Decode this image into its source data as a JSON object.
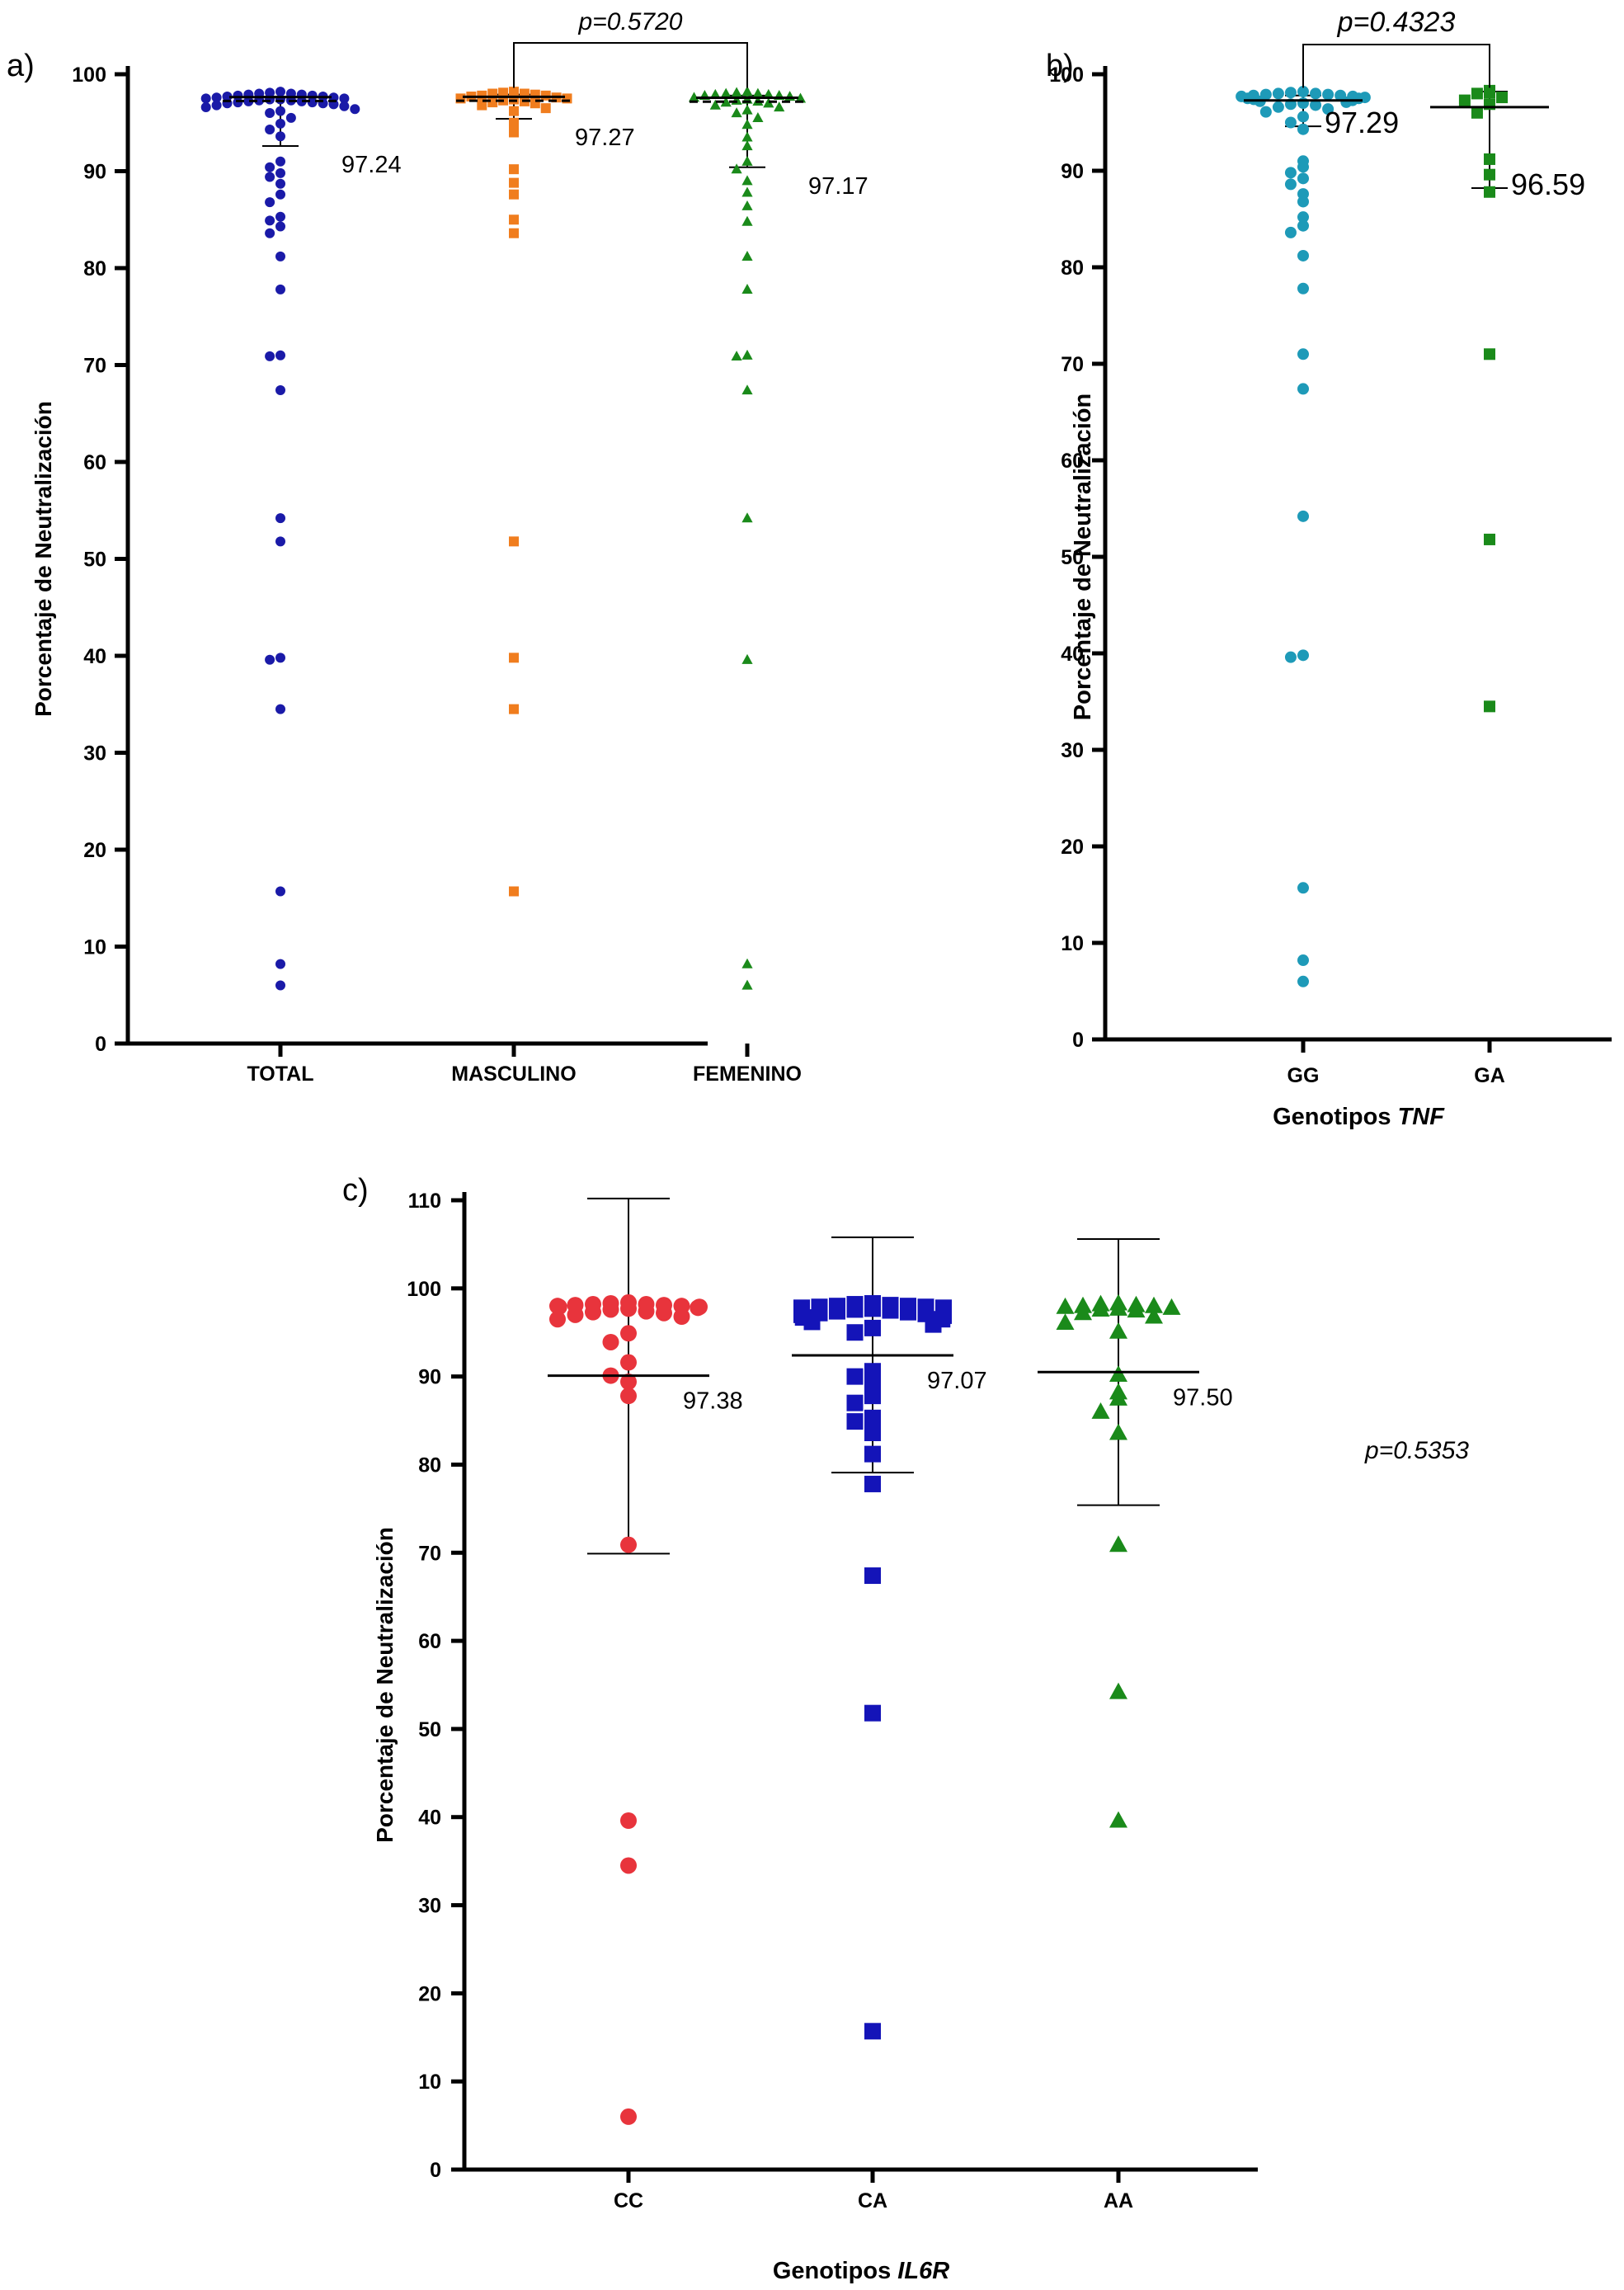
{
  "chart_data": [
    {
      "panel": "a)",
      "type": "scatter",
      "ylabel": "Porcentaje de Neutralización",
      "xlabel": "",
      "ylim": [
        0,
        100
      ],
      "yticks": [
        0,
        10,
        20,
        30,
        40,
        50,
        60,
        70,
        80,
        90,
        100
      ],
      "categories": [
        "TOTAL",
        "MASCULINO",
        "FEMENINO"
      ],
      "pvalue": "p=0.5720",
      "pvalue_compares": [
        "MASCULINO",
        "FEMENINO"
      ],
      "series": [
        {
          "category": "TOTAL",
          "marker": "circle",
          "color": "#1a1aa8",
          "median": 97.24,
          "median_label": "97.24",
          "err_low": 92.6,
          "err_high": 97.7,
          "values": [
            98.2,
            98.1,
            98.0,
            98.0,
            97.9,
            97.9,
            97.8,
            97.8,
            97.7,
            97.7,
            97.6,
            97.6,
            97.5,
            97.5,
            97.4,
            97.4,
            97.3,
            97.3,
            97.2,
            97.2,
            97.1,
            97.1,
            97.0,
            97.0,
            96.9,
            96.8,
            96.7,
            96.6,
            96.4,
            96.2,
            96.0,
            95.5,
            94.9,
            94.3,
            93.6,
            91.0,
            90.4,
            89.8,
            89.4,
            88.7,
            87.6,
            86.8,
            85.3,
            84.9,
            84.3,
            83.6,
            81.2,
            77.8,
            71.0,
            70.9,
            67.4,
            54.2,
            51.8,
            39.8,
            39.6,
            34.5,
            15.7,
            8.2,
            6.0
          ]
        },
        {
          "category": "MASCULINO",
          "marker": "square",
          "color": "#f07d1e",
          "median": 97.27,
          "median_label": "97.27",
          "err_low": 95.4,
          "err_high": 97.9,
          "values": [
            98.2,
            98.1,
            98.0,
            98.0,
            97.9,
            97.8,
            97.8,
            97.7,
            97.6,
            97.5,
            97.5,
            97.4,
            97.3,
            97.2,
            97.1,
            97.0,
            96.8,
            96.5,
            96.2,
            95.0,
            94.0,
            90.2,
            88.8,
            87.6,
            85.0,
            83.6,
            51.8,
            39.8,
            34.5,
            15.7
          ]
        },
        {
          "category": "FEMENINO",
          "marker": "triangle",
          "color": "#1a8a1a",
          "median": 97.17,
          "median_label": "97.17",
          "err_low": 90.4,
          "err_high": 97.8,
          "values": [
            98.2,
            98.1,
            98.0,
            98.0,
            97.9,
            97.9,
            97.8,
            97.8,
            97.7,
            97.6,
            97.5,
            97.4,
            97.3,
            97.2,
            97.1,
            97.0,
            96.8,
            96.6,
            96.3,
            96.0,
            95.5,
            94.8,
            93.5,
            92.6,
            91.0,
            90.2,
            89.0,
            87.8,
            86.4,
            84.8,
            81.2,
            77.8,
            71.0,
            70.9,
            67.4,
            54.2,
            39.6,
            8.2,
            6.0
          ]
        }
      ]
    },
    {
      "panel": "b)",
      "type": "scatter",
      "ylabel": "Porcentaje de Neutralización",
      "xlabel": "Genotipos ",
      "xlabel_italic": "TNF",
      "ylim": [
        0,
        100
      ],
      "yticks": [
        0,
        10,
        20,
        30,
        40,
        50,
        60,
        70,
        80,
        90,
        100
      ],
      "categories": [
        "GG",
        "GA"
      ],
      "pvalue": "p=0.4323",
      "pvalue_compares": [
        "GG",
        "GA"
      ],
      "series": [
        {
          "category": "GG",
          "marker": "circle",
          "color": "#1e9ab8",
          "median": 97.29,
          "median_label": "97.29",
          "err_low": 94.6,
          "err_high": 97.8,
          "values": [
            98.2,
            98.1,
            98.0,
            98.0,
            97.9,
            97.9,
            97.8,
            97.8,
            97.7,
            97.7,
            97.6,
            97.5,
            97.5,
            97.4,
            97.3,
            97.2,
            97.1,
            97.0,
            96.9,
            96.8,
            96.6,
            96.4,
            96.1,
            95.6,
            95.0,
            94.3,
            91.0,
            90.4,
            89.8,
            89.2,
            88.6,
            87.6,
            86.8,
            85.2,
            84.3,
            83.6,
            81.2,
            77.8,
            71.0,
            67.4,
            54.2,
            39.8,
            39.6,
            15.7,
            8.2,
            6.0
          ]
        },
        {
          "category": "GA",
          "marker": "square",
          "color": "#1a8a1a",
          "median": 96.59,
          "median_label": "96.59",
          "err_low": 88.2,
          "err_high": 98.2,
          "values": [
            98.3,
            98.1,
            98.0,
            97.6,
            97.3,
            96.9,
            96.0,
            91.2,
            89.6,
            87.8,
            71.0,
            51.8,
            34.5
          ]
        }
      ]
    },
    {
      "panel": "c)",
      "type": "scatter",
      "ylabel": "Porcentaje de Neutralización",
      "xlabel": "Genotipos ",
      "xlabel_italic": "IL6R",
      "ylim": [
        0,
        110
      ],
      "yticks": [
        0,
        10,
        20,
        30,
        40,
        50,
        60,
        70,
        80,
        90,
        100,
        110
      ],
      "categories": [
        "CC",
        "CA",
        "AA"
      ],
      "pvalue": "p=0.5353",
      "series": [
        {
          "category": "CC",
          "marker": "circle",
          "color": "#e8343c",
          "median": 97.38,
          "median_label": "97.38",
          "mean_line": 90.1,
          "err_low": 69.9,
          "err_high": 110.2,
          "values": [
            98.4,
            98.3,
            98.2,
            98.2,
            98.1,
            98.1,
            98.0,
            98.0,
            97.9,
            97.9,
            97.8,
            97.7,
            97.6,
            97.4,
            97.3,
            97.2,
            97.0,
            96.8,
            96.5,
            94.9,
            93.9,
            91.6,
            90.1,
            89.4,
            87.8,
            70.9,
            39.6,
            34.5,
            6.0
          ]
        },
        {
          "category": "CA",
          "marker": "square",
          "color": "#1414b8",
          "median": 97.07,
          "median_label": "97.07",
          "mean_line": 92.4,
          "err_low": 79.1,
          "err_high": 105.8,
          "values": [
            98.3,
            98.2,
            98.1,
            98.0,
            98.0,
            97.9,
            97.9,
            97.8,
            97.8,
            97.7,
            97.6,
            97.5,
            97.4,
            97.3,
            97.2,
            97.1,
            97.0,
            96.9,
            96.7,
            96.5,
            96.2,
            95.9,
            95.5,
            95.0,
            90.6,
            90.0,
            89.4,
            87.8,
            87.0,
            85.3,
            84.9,
            83.6,
            81.2,
            77.8,
            67.4,
            51.8,
            15.7
          ]
        },
        {
          "category": "AA",
          "marker": "triangle",
          "color": "#1a8a1a",
          "median": 97.5,
          "median_label": "97.50",
          "mean_line": 90.5,
          "err_low": 75.4,
          "err_high": 105.6,
          "values": [
            98.3,
            98.2,
            98.1,
            98.0,
            98.0,
            97.9,
            97.8,
            97.7,
            97.6,
            97.5,
            97.2,
            96.8,
            96.1,
            95.1,
            90.2,
            88.2,
            87.5,
            86.0,
            83.6,
            70.9,
            54.2,
            39.6
          ]
        }
      ]
    }
  ]
}
